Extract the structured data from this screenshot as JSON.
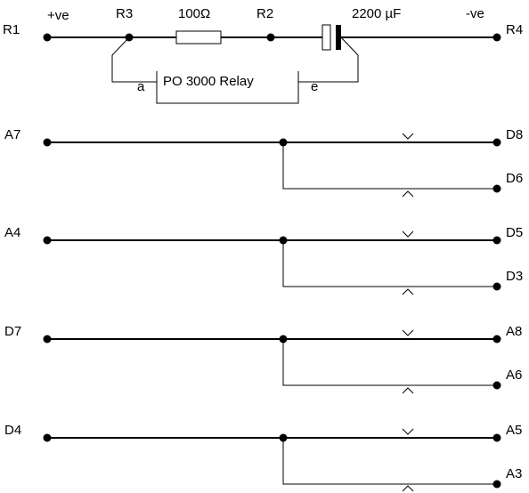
{
  "top_circuit": {
    "left_terminal": "R1",
    "right_terminal": "R4",
    "positive_label": "+ve",
    "negative_label": "-ve",
    "node_left": "R3",
    "node_right": "R2",
    "resistor_value": "100Ω",
    "capacitor_value": "2200 µF",
    "relay_label": "PO 3000 Relay",
    "relay_pin_a": "a",
    "relay_pin_e": "e"
  },
  "contact_sets": [
    {
      "left": "A7",
      "right_top": "D8",
      "right_bottom": "D6"
    },
    {
      "left": "A4",
      "right_top": "D5",
      "right_bottom": "D3"
    },
    {
      "left": "D7",
      "right_top": "A8",
      "right_bottom": "A6"
    },
    {
      "left": "D4",
      "right_top": "A5",
      "right_bottom": "A3"
    }
  ]
}
